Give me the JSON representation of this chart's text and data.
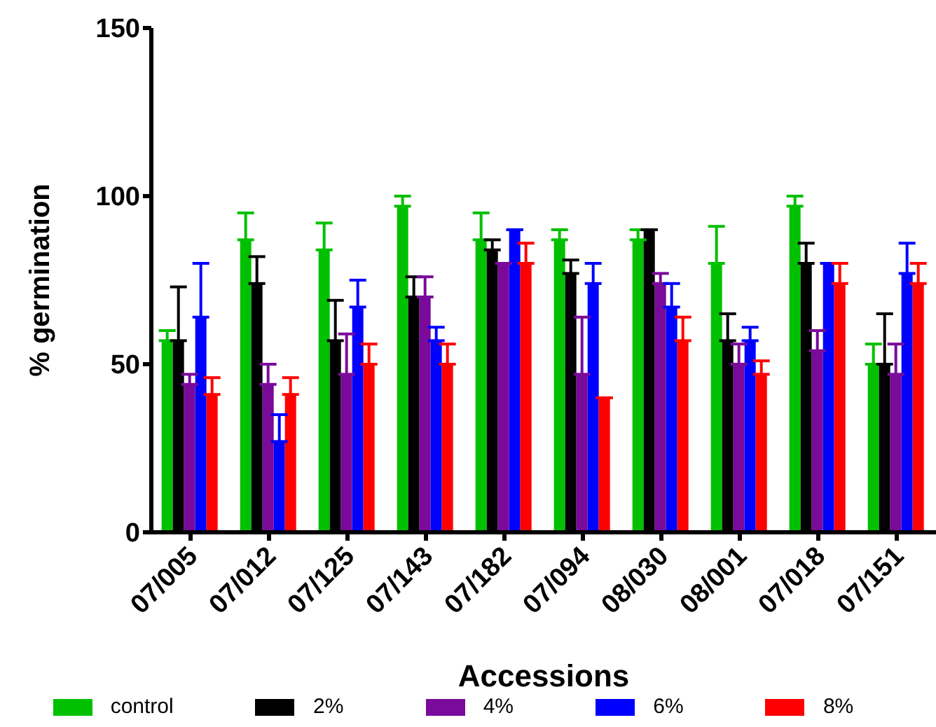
{
  "chart_data": {
    "type": "bar",
    "xlabel": "Accessions",
    "ylabel": "% germination",
    "categories": [
      "07/005",
      "07/012",
      "07/125",
      "07/143",
      "07/182",
      "07/094",
      "08/030",
      "08/001",
      "07/018",
      "07/151"
    ],
    "series": [
      {
        "name": "control",
        "color": "#00c000",
        "values": [
          57,
          87,
          84,
          97,
          87,
          87,
          87,
          80,
          97,
          50
        ],
        "errors": [
          3,
          8,
          8,
          3,
          8,
          3,
          3,
          11,
          3,
          6
        ]
      },
      {
        "name": "2%",
        "color": "#000000",
        "values": [
          57,
          74,
          57,
          70,
          84,
          77,
          90,
          57,
          80,
          50
        ],
        "errors": [
          16,
          8,
          12,
          6,
          3,
          4,
          0,
          8,
          6,
          15
        ]
      },
      {
        "name": "4%",
        "color": "#7a0a9a",
        "values": [
          44,
          44,
          47,
          70,
          80,
          47,
          74,
          50,
          54,
          47
        ],
        "errors": [
          3,
          6,
          12,
          6,
          0,
          17,
          3,
          6,
          6,
          9
        ]
      },
      {
        "name": "6%",
        "color": "#0000ff",
        "values": [
          64,
          27,
          67,
          57,
          90,
          74,
          67,
          57,
          80,
          77
        ],
        "errors": [
          16,
          8,
          8,
          4,
          0,
          6,
          7,
          4,
          0,
          9
        ]
      },
      {
        "name": "8%",
        "color": "#ff0000",
        "values": [
          41,
          41,
          50,
          50,
          80,
          40,
          57,
          47,
          74,
          74
        ],
        "errors": [
          5,
          5,
          6,
          6,
          6,
          0,
          7,
          4,
          6,
          6
        ]
      }
    ],
    "ylim": [
      0,
      150
    ],
    "yticks": [
      0,
      50,
      100,
      150
    ],
    "grid": false,
    "legend": "bottom"
  }
}
